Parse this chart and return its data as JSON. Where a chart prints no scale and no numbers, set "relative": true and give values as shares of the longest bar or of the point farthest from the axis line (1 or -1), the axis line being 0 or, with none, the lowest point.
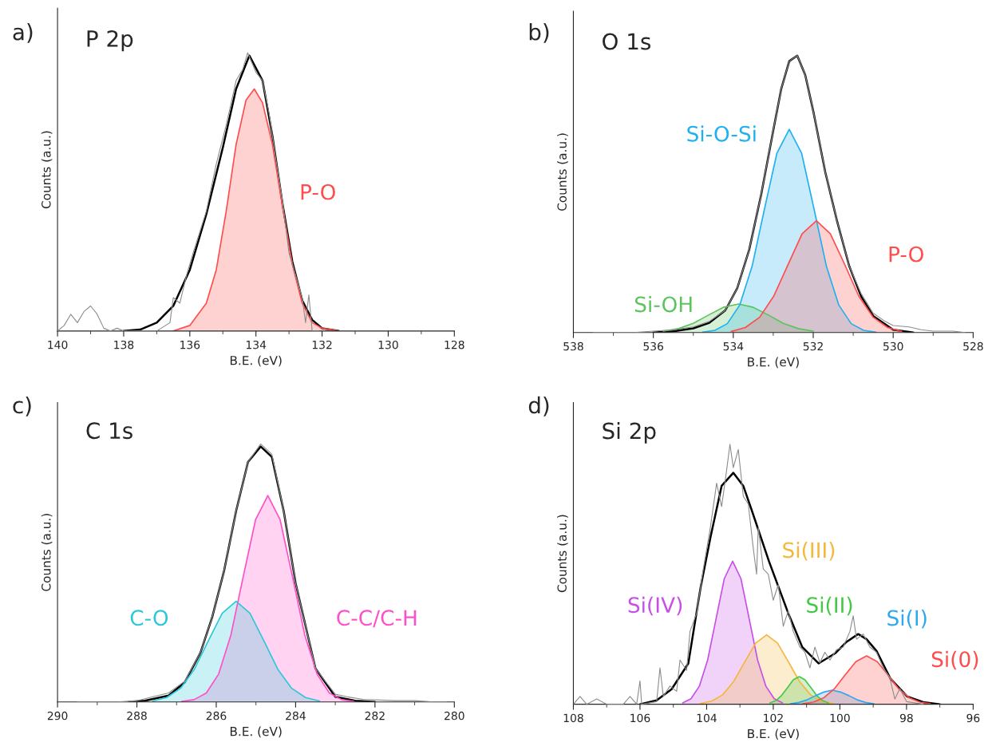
{
  "chart_data": [
    {
      "type": "line",
      "title": "P 2p",
      "xlabel": "B.E. (eV)",
      "ylabel": "Counts (a.u.)",
      "annotations": [
        "a)"
      ],
      "relative": true,
      "xlim": [
        140,
        128
      ],
      "xticks": [
        140,
        138,
        136,
        134,
        132,
        130,
        128
      ],
      "series": [
        {
          "color": "#8c8c8c",
          "x": [
            140,
            139.8,
            139.6,
            139.4,
            139.2,
            139.0,
            138.8,
            138.6,
            138.4,
            138.2,
            138.0,
            137.5,
            137.0,
            136.6,
            136.5,
            136.3,
            136.1,
            135.9,
            135.5,
            135.2,
            134.9,
            134.6,
            134.4,
            134.25,
            134.0,
            133.8,
            133.6,
            133.4,
            133.2,
            133.0,
            132.8,
            132.6,
            132.5,
            132.4,
            132.3,
            132.1
          ],
          "values": [
            0,
            0.02,
            0.06,
            0.03,
            0.07,
            0.09,
            0.06,
            0.01,
            0,
            0.01,
            0,
            0,
            0,
            0.03,
            0.12,
            0.1,
            0.2,
            0.28,
            0.43,
            0.6,
            0.74,
            0.9,
            0.94,
            1.0,
            0.93,
            0.9,
            0.78,
            0.62,
            0.47,
            0.28,
            0.2,
            0.12,
            0.03,
            0.13,
            0.0,
            0
          ]
        },
        {
          "color": "#000000",
          "x": [
            138.0,
            137.5,
            137.0,
            136.5,
            136.0,
            135.5,
            135.0,
            134.6,
            134.2,
            133.8,
            133.5,
            133.2,
            132.9,
            132.6,
            132.3,
            132.0,
            131.5
          ],
          "values": [
            0,
            0.005,
            0.03,
            0.09,
            0.22,
            0.42,
            0.66,
            0.87,
            0.99,
            0.9,
            0.7,
            0.46,
            0.25,
            0.11,
            0.04,
            0.01,
            0
          ]
        },
        {
          "type": "area",
          "name": "P-O",
          "color": "#ff4d4d",
          "x": [
            136.5,
            136.0,
            135.5,
            135.2,
            134.9,
            134.6,
            134.3,
            134.05,
            133.8,
            133.5,
            133.2,
            132.9,
            132.6,
            132.3,
            132.0,
            131.5
          ],
          "values": [
            0,
            0.02,
            0.1,
            0.22,
            0.43,
            0.67,
            0.83,
            0.87,
            0.82,
            0.67,
            0.45,
            0.24,
            0.1,
            0.03,
            0.01,
            0
          ]
        }
      ]
    },
    {
      "type": "line",
      "title": "O 1s",
      "xlabel": "B.E. (eV)",
      "ylabel": "Counts (a.u.)",
      "annotations": [
        "b)"
      ],
      "relative": true,
      "xlim": [
        538,
        528
      ],
      "xticks": [
        538,
        536,
        534,
        532,
        530,
        528
      ],
      "series": [
        {
          "color": "#8c8c8c",
          "x": [
            537.5,
            536.5,
            536,
            535.5,
            535,
            534.6,
            534.2,
            533.9,
            533.6,
            533.3,
            533,
            532.8,
            532.6,
            532.4,
            532.2,
            532,
            531.7,
            531.4,
            531.1,
            530.8,
            530.5,
            530.2,
            530.0,
            529.6,
            529.3,
            529,
            528.5,
            528.2
          ],
          "values": [
            0,
            0,
            0.005,
            0.01,
            0.02,
            0.04,
            0.08,
            0.16,
            0.3,
            0.5,
            0.73,
            0.88,
            0.98,
            1.0,
            0.93,
            0.8,
            0.58,
            0.4,
            0.24,
            0.14,
            0.07,
            0.04,
            0.025,
            0.02,
            0.01,
            0.005,
            0.005,
            0
          ]
        },
        {
          "color": "#000000",
          "x": [
            536.0,
            535.5,
            535.0,
            534.6,
            534.2,
            533.9,
            533.6,
            533.3,
            533.0,
            532.8,
            532.6,
            532.4,
            532.2,
            532.0,
            531.7,
            531.4,
            531.1,
            530.8,
            530.5,
            530.0,
            529.5
          ],
          "values": [
            0,
            0.004,
            0.015,
            0.035,
            0.08,
            0.16,
            0.3,
            0.5,
            0.73,
            0.88,
            0.98,
            1.0,
            0.93,
            0.8,
            0.58,
            0.4,
            0.24,
            0.13,
            0.06,
            0.01,
            0
          ]
        },
        {
          "type": "area",
          "name": "Si-OH",
          "color": "#5cc45c",
          "x": [
            532.0,
            532.37,
            532.75,
            533.12,
            533.5,
            533.87,
            534.25,
            534.62,
            535.0,
            535.37,
            535.75
          ],
          "values": [
            0.005,
            0.014,
            0.033,
            0.063,
            0.091,
            0.103,
            0.091,
            0.063,
            0.033,
            0.014,
            0.005
          ]
        },
        {
          "type": "area",
          "name": "Si-O-Si",
          "color": "#1fb0f0",
          "x": [
            530.43,
            530.74,
            531.05,
            531.36,
            531.67,
            531.98,
            532.29,
            532.6,
            532.91,
            533.22,
            533.53,
            533.84,
            534.15,
            534.46,
            534.77
          ],
          "values": [
            0.001,
            0.008,
            0.032,
            0.099,
            0.239,
            0.446,
            0.647,
            0.734,
            0.647,
            0.446,
            0.239,
            0.099,
            0.032,
            0.008,
            0.001
          ]
        },
        {
          "type": "area",
          "name": "P-O",
          "color": "#ff4d4d",
          "x": [
            529.79,
            530.14,
            530.5,
            530.86,
            531.21,
            531.57,
            531.92,
            532.28,
            532.63,
            532.99,
            533.34,
            533.7,
            534.05
          ],
          "values": [
            0.004,
            0.018,
            0.055,
            0.131,
            0.245,
            0.356,
            0.404,
            0.356,
            0.245,
            0.131,
            0.055,
            0.018,
            0.004
          ]
        }
      ]
    },
    {
      "type": "line",
      "title": "C 1s",
      "xlabel": "B.E. (eV)",
      "ylabel": "Counts (a.u.)",
      "annotations": [
        "c)"
      ],
      "relative": true,
      "xlim": [
        290,
        280
      ],
      "xticks": [
        290,
        288,
        286,
        284,
        282,
        280
      ],
      "series": [
        {
          "color": "#8c8c8c",
          "x": [
            289.5,
            288.5,
            288,
            287.6,
            287.2,
            286.8,
            286.4,
            286.1,
            285.8,
            285.5,
            285.2,
            284.88,
            284.6,
            284.3,
            284.0,
            283.5,
            283.0,
            282.7,
            282.3,
            281.5,
            281,
            280.5,
            280.2
          ],
          "values": [
            0,
            0,
            0.005,
            0.02,
            0.035,
            0.08,
            0.19,
            0.33,
            0.51,
            0.74,
            0.93,
            1.0,
            0.96,
            0.74,
            0.46,
            0.13,
            0.03,
            0.02,
            0.01,
            0.005,
            0.005,
            0,
            0
          ]
        },
        {
          "color": "#000000",
          "x": [
            288.2,
            287.8,
            287.2,
            286.8,
            286.4,
            286.1,
            285.8,
            285.5,
            285.2,
            284.88,
            284.6,
            284.3,
            284.0,
            283.5,
            283.0,
            282.5,
            282.0
          ],
          "values": [
            0,
            0.005,
            0.025,
            0.075,
            0.19,
            0.33,
            0.51,
            0.74,
            0.93,
            0.99,
            0.95,
            0.74,
            0.46,
            0.13,
            0.02,
            0.005,
            0
          ]
        },
        {
          "type": "area",
          "name": "C-C/C-H",
          "color": "#ff4fc8",
          "x": [
            282.53,
            282.84,
            283.15,
            283.46,
            283.77,
            284.08,
            284.39,
            284.7,
            285.01,
            285.32,
            285.63,
            285.94,
            286.25,
            286.56,
            286.87
          ],
          "values": [
            0.002,
            0.009,
            0.035,
            0.108,
            0.26,
            0.486,
            0.706,
            0.8,
            0.706,
            0.486,
            0.26,
            0.108,
            0.035,
            0.009,
            0.002
          ]
        },
        {
          "type": "area",
          "name": "C-O",
          "color": "#2cc8d8",
          "x": [
            283.4,
            283.75,
            284.1,
            284.45,
            284.8,
            285.15,
            285.5,
            285.85,
            286.2,
            286.55,
            286.9,
            287.25,
            287.6
          ],
          "values": [
            0.004,
            0.017,
            0.053,
            0.127,
            0.237,
            0.344,
            0.39,
            0.344,
            0.237,
            0.127,
            0.053,
            0.017,
            0.004
          ]
        }
      ]
    },
    {
      "type": "line",
      "title": "Si 2p",
      "xlabel": "B.E. (eV)",
      "ylabel": "Counts (a.u.)",
      "annotations": [
        "d)"
      ],
      "relative": true,
      "xlim": [
        108,
        96
      ],
      "xticks": [
        108,
        106,
        104,
        102,
        100,
        98,
        96
      ],
      "series": [
        {
          "color": "#8c8c8c",
          "x": [
            108,
            107.8,
            107.6,
            107.3,
            107,
            106.5,
            106.3,
            106.1,
            106.0,
            105.95,
            105.5,
            105.4,
            105.3,
            105.1,
            104.9,
            104.8,
            104.6,
            104.5,
            104.3,
            104.1,
            103.9,
            103.7,
            103.55,
            103.4,
            103.3,
            103.2,
            103.05,
            102.9,
            102.75,
            102.6,
            102.5,
            102.45,
            102.3,
            102.15,
            102.0,
            101.85,
            101.7,
            101.55,
            101.4,
            101.2,
            101.05,
            100.9,
            100.75,
            100.6,
            100.45,
            100.3,
            100.1,
            99.9,
            99.7,
            99.6,
            99.5,
            99.3,
            99.1,
            98.9,
            98.7,
            98.5,
            98.35,
            98.2,
            98.0,
            97.5
          ],
          "values": [
            0,
            0.03,
            0,
            0.02,
            0,
            0,
            0.03,
            0,
            0.09,
            0,
            0.01,
            0.14,
            0.03,
            0.07,
            0.05,
            0.17,
            0.13,
            0.28,
            0.35,
            0.52,
            0.67,
            0.85,
            0.76,
            0.9,
            1.0,
            0.91,
            0.98,
            0.8,
            0.77,
            0.6,
            0.5,
            0.68,
            0.52,
            0.5,
            0.4,
            0.46,
            0.3,
            0.36,
            0.28,
            0.22,
            0.2,
            0.14,
            0.22,
            0.16,
            0.2,
            0.17,
            0.21,
            0.22,
            0.28,
            0.34,
            0.25,
            0.27,
            0.22,
            0.2,
            0.14,
            0.1,
            0.02,
            0.06,
            0.01,
            0
          ]
        },
        {
          "color": "#000000",
          "x": [
            106,
            105.5,
            105.05,
            104.55,
            104.18,
            103.88,
            103.55,
            103.2,
            102.9,
            102.63,
            102.13,
            101.55,
            101.13,
            100.64,
            100.14,
            99.8,
            99.45,
            99.2,
            98.9,
            98.48,
            97.98,
            97.5,
            97
          ],
          "values": [
            0,
            0.015,
            0.058,
            0.157,
            0.45,
            0.645,
            0.84,
            0.89,
            0.84,
            0.74,
            0.55,
            0.35,
            0.22,
            0.157,
            0.196,
            0.24,
            0.27,
            0.25,
            0.205,
            0.098,
            0.03,
            0.008,
            0
          ]
        },
        {
          "type": "area",
          "name": "Si(IV)",
          "color": "#c84fe6",
          "x": [
            101.72,
            101.97,
            102.22,
            102.47,
            102.72,
            102.97,
            103.22,
            103.47,
            103.72,
            103.97,
            104.22,
            104.47,
            104.72
          ],
          "values": [
            0.005,
            0.021,
            0.069,
            0.17,
            0.327,
            0.483,
            0.55,
            0.483,
            0.327,
            0.17,
            0.069,
            0.021,
            0.005
          ]
        },
        {
          "type": "area",
          "name": "Si(III)",
          "color": "#f5b63c",
          "x": [
            100.22,
            100.55,
            100.88,
            101.21,
            101.54,
            101.87,
            102.2,
            102.53,
            102.86,
            103.19,
            103.52,
            103.85,
            104.18
          ],
          "values": [
            0.003,
            0.012,
            0.036,
            0.087,
            0.162,
            0.235,
            0.267,
            0.235,
            0.162,
            0.087,
            0.036,
            0.012,
            0.003
          ]
        },
        {
          "type": "area",
          "name": "Si(II)",
          "color": "#45c845",
          "x": [
            100.35,
            100.52,
            100.7,
            100.87,
            101.05,
            101.22,
            101.4,
            101.57,
            101.75,
            101.92,
            102.1
          ],
          "values": [
            0.005,
            0.014,
            0.034,
            0.064,
            0.094,
            0.106,
            0.094,
            0.064,
            0.034,
            0.014,
            0.005
          ]
        },
        {
          "type": "area",
          "name": "Si(I)",
          "color": "#2fa8f0",
          "x": [
            98.98,
            99.23,
            99.48,
            99.73,
            99.98,
            100.23,
            100.48,
            100.73,
            100.98,
            101.23,
            101.48
          ],
          "values": [
            0.002,
            0.007,
            0.017,
            0.033,
            0.047,
            0.054,
            0.047,
            0.033,
            0.017,
            0.007,
            0.002
          ]
        },
        {
          "type": "area",
          "name": "Si(0)",
          "color": "#ff4d4d",
          "x": [
            97.28,
            97.6,
            97.92,
            98.24,
            98.56,
            98.88,
            99.2,
            99.52,
            99.84,
            100.16,
            100.48,
            100.8,
            101.12
          ],
          "values": [
            0.002,
            0.008,
            0.025,
            0.06,
            0.113,
            0.164,
            0.186,
            0.164,
            0.113,
            0.06,
            0.025,
            0.008,
            0.002
          ]
        }
      ]
    }
  ]
}
